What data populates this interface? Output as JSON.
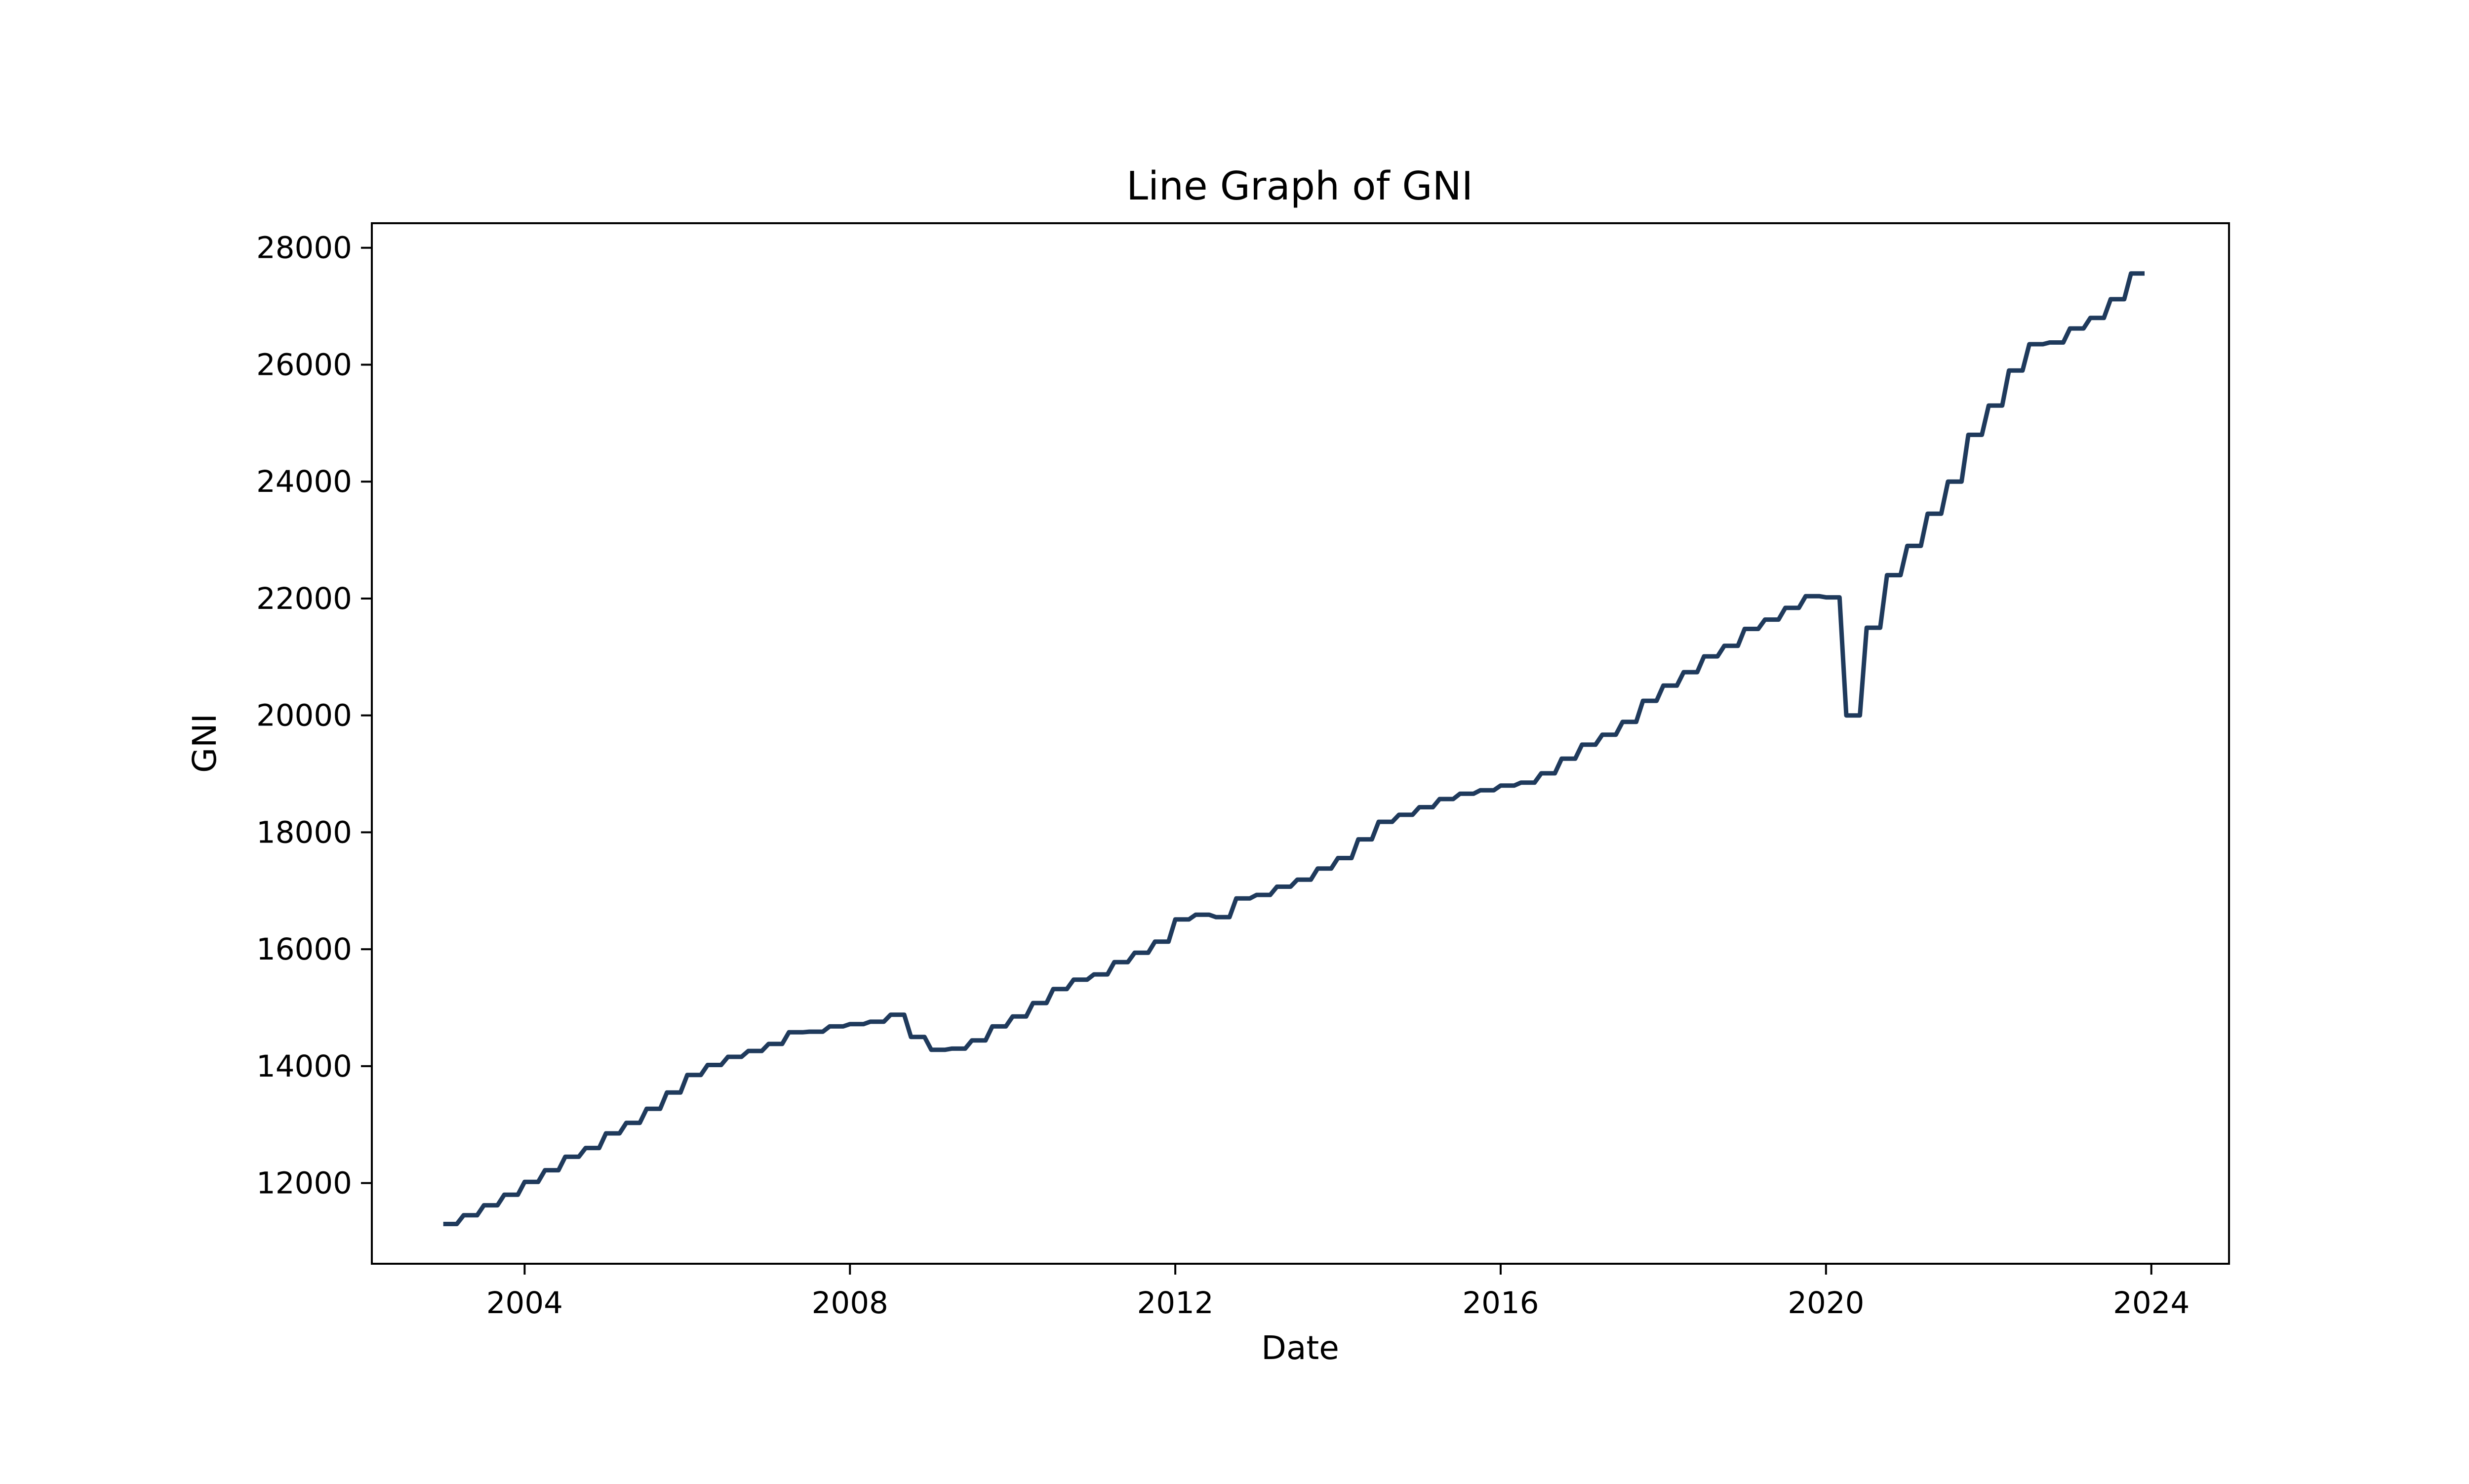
{
  "chart_data": {
    "type": "line",
    "title": "Line Graph of GNI",
    "xlabel": "Date",
    "ylabel": "GNI",
    "x_ticks": [
      "2004",
      "2008",
      "2012",
      "2016",
      "2020",
      "2024"
    ],
    "y_ticks": [
      "12000",
      "14000",
      "16000",
      "18000",
      "20000",
      "22000",
      "24000",
      "26000",
      "28000"
    ],
    "xlim": [
      "2002-02-15",
      "2024-12-15"
    ],
    "ylim": [
      10620,
      28420
    ],
    "grid": false,
    "legend": "none",
    "line_color": "#1f3a5c",
    "x_interpretation": "quarterly values, drawn as steps held flat across each quarter",
    "series": [
      {
        "x": [
          "2003-01",
          "2003-04",
          "2003-07",
          "2003-10",
          "2004-01",
          "2004-04",
          "2004-07",
          "2004-10",
          "2005-01",
          "2005-04",
          "2005-07",
          "2005-10",
          "2006-01",
          "2006-04",
          "2006-07",
          "2006-10",
          "2007-01",
          "2007-04",
          "2007-07",
          "2007-10",
          "2008-01",
          "2008-04",
          "2008-07",
          "2008-10",
          "2009-01",
          "2009-04",
          "2009-07",
          "2009-10",
          "2010-01",
          "2010-04",
          "2010-07",
          "2010-10",
          "2011-01",
          "2011-04",
          "2011-07",
          "2011-10",
          "2012-01",
          "2012-04",
          "2012-07",
          "2012-10",
          "2013-01",
          "2013-04",
          "2013-07",
          "2013-10",
          "2014-01",
          "2014-04",
          "2014-07",
          "2014-10",
          "2015-01",
          "2015-04",
          "2015-07",
          "2015-10",
          "2016-01",
          "2016-04",
          "2016-07",
          "2016-10",
          "2017-01",
          "2017-04",
          "2017-07",
          "2017-10",
          "2018-01",
          "2018-04",
          "2018-07",
          "2018-10",
          "2019-01",
          "2019-04",
          "2019-07",
          "2019-10",
          "2020-01",
          "2020-04",
          "2020-07",
          "2020-10",
          "2021-01",
          "2021-04",
          "2021-07",
          "2021-10",
          "2022-01",
          "2022-04",
          "2022-07",
          "2022-10",
          "2023-01",
          "2023-04",
          "2023-07",
          "2023-10"
        ],
        "values": [
          11300,
          11450,
          11620,
          11800,
          12020,
          12220,
          12450,
          12600,
          12850,
          13030,
          13270,
          13550,
          13850,
          14020,
          14160,
          14260,
          14380,
          14580,
          14590,
          14680,
          14720,
          14760,
          14880,
          14500,
          14280,
          14300,
          14440,
          14680,
          14850,
          15080,
          15320,
          15480,
          15570,
          15780,
          15940,
          16130,
          16510,
          16590,
          16550,
          16870,
          16930,
          17070,
          17190,
          17380,
          17560,
          17880,
          18180,
          18300,
          18430,
          18570,
          18660,
          18720,
          18800,
          18850,
          19010,
          19260,
          19500,
          19670,
          19890,
          20250,
          20510,
          20740,
          21010,
          21190,
          21480,
          21640,
          21840,
          22040,
          22020,
          20000,
          21500,
          22400,
          22900,
          23450,
          24000,
          24800,
          25300,
          25900,
          26350,
          26380,
          26620,
          26800,
          27120,
          27560
        ]
      }
    ]
  }
}
